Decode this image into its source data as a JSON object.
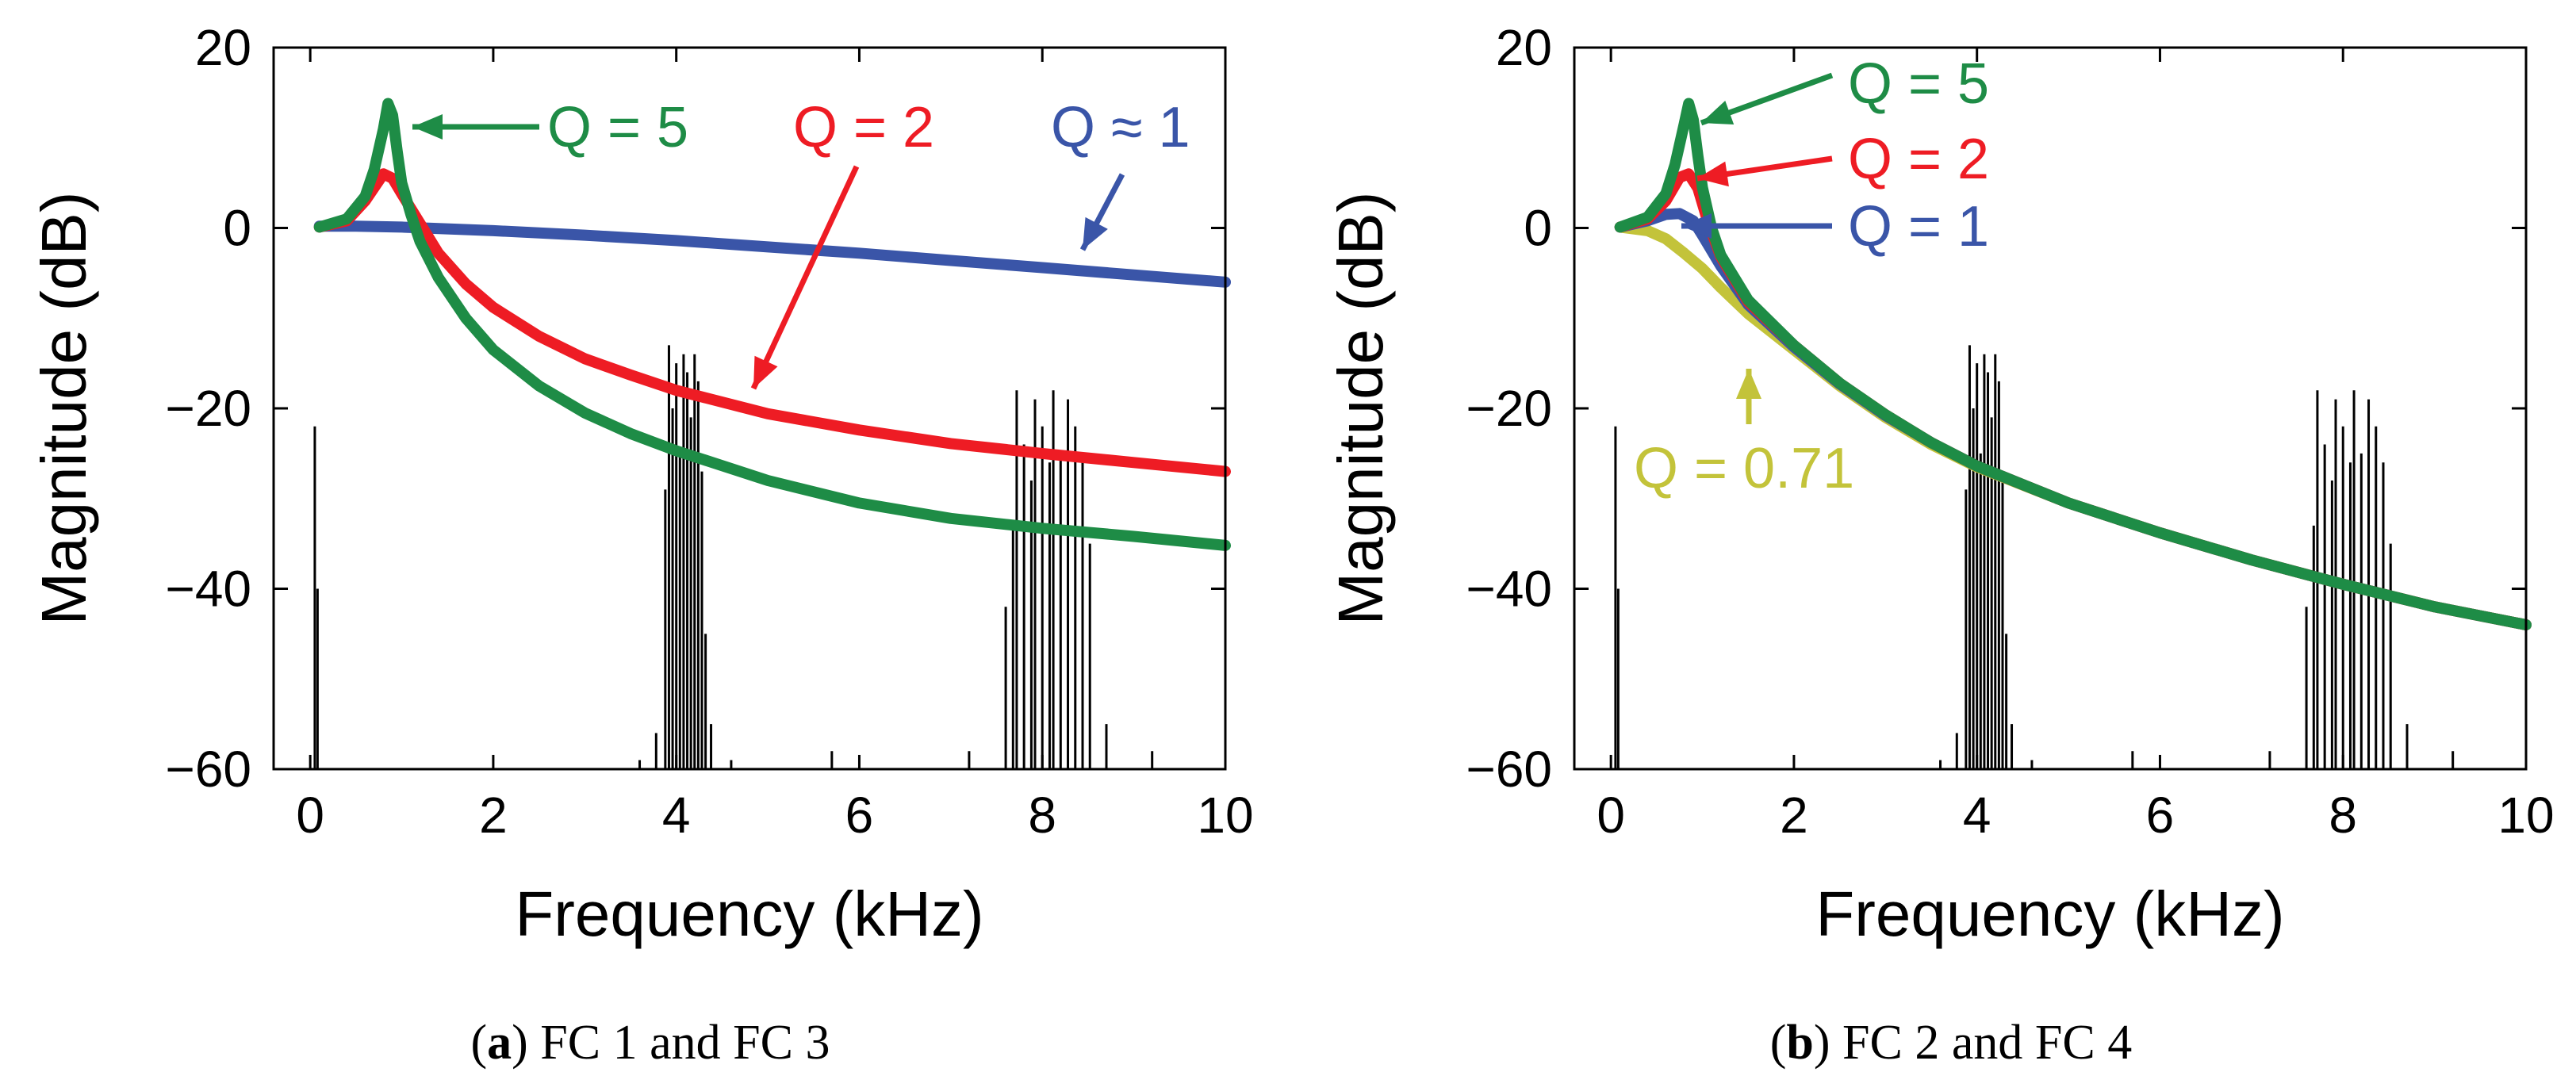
{
  "colors": {
    "green": "#1e8c46",
    "red": "#ee1c24",
    "blue": "#3a55a8",
    "yellow": "#c3c33a",
    "black": "#000000"
  },
  "chart_data": [
    {
      "type": "line",
      "caption_letter": "a",
      "caption_text": "FC 1 and FC 3",
      "xlabel": "Frequency (kHz)",
      "ylabel": "Magnitude (dB)",
      "xlim": [
        -0.4,
        10
      ],
      "ylim": [
        -60,
        20
      ],
      "xticks": [
        0,
        2,
        4,
        6,
        8,
        10
      ],
      "yticks": [
        20,
        0,
        -20,
        -40,
        -60
      ],
      "series": [
        {
          "name": "Q ≈ 1",
          "color": "blue",
          "label": "Q ≈ 1",
          "x": [
            0.1,
            0.5,
            1,
            2,
            3,
            4,
            5,
            6,
            7,
            8,
            9,
            10
          ],
          "y": [
            0.2,
            0.2,
            0.1,
            -0.3,
            -0.8,
            -1.4,
            -2.1,
            -2.8,
            -3.6,
            -4.4,
            -5.2,
            -6
          ]
        },
        {
          "name": "Q = 2",
          "color": "red",
          "label": "Q = 2",
          "x": [
            0.1,
            0.4,
            0.6,
            0.8,
            0.9,
            1.0,
            1.2,
            1.4,
            1.7,
            2,
            2.5,
            3,
            3.5,
            4,
            5,
            6,
            7,
            8,
            9,
            10
          ],
          "y": [
            0.1,
            0.8,
            3.0,
            6.0,
            5.5,
            3.8,
            0.5,
            -2.8,
            -6.2,
            -8.8,
            -12.0,
            -14.5,
            -16.3,
            -18.0,
            -20.6,
            -22.4,
            -23.9,
            -25.0,
            -26.0,
            -27.0
          ]
        },
        {
          "name": "Q = 5",
          "color": "green",
          "label": "Q = 5",
          "x": [
            0.1,
            0.4,
            0.6,
            0.7,
            0.8,
            0.85,
            0.9,
            0.95,
            1.0,
            1.1,
            1.2,
            1.4,
            1.7,
            2,
            2.5,
            3,
            3.5,
            4,
            5,
            6,
            7,
            8,
            9,
            10
          ],
          "y": [
            0.1,
            1.0,
            3.5,
            6.5,
            11.0,
            13.8,
            12.5,
            8.5,
            5.0,
            1.5,
            -1.5,
            -5.5,
            -10.0,
            -13.5,
            -17.5,
            -20.5,
            -22.8,
            -24.7,
            -28.0,
            -30.5,
            -32.2,
            -33.3,
            -34.2,
            -35.2
          ]
        }
      ],
      "annotations": [
        {
          "text": "Q = 5",
          "color": "green"
        },
        {
          "text": "Q = 2",
          "color": "red"
        },
        {
          "text": "Q ≈ 1",
          "color": "blue"
        }
      ],
      "spectrum": {
        "baseline": -60,
        "peaks": [
          {
            "x": 0.05,
            "y": -22
          },
          {
            "x": 0.08,
            "y": -40
          },
          {
            "x": 3.78,
            "y": -56
          },
          {
            "x": 3.88,
            "y": -29
          },
          {
            "x": 3.92,
            "y": -13
          },
          {
            "x": 3.96,
            "y": -20
          },
          {
            "x": 4.0,
            "y": -15
          },
          {
            "x": 4.04,
            "y": -25
          },
          {
            "x": 4.08,
            "y": -14
          },
          {
            "x": 4.12,
            "y": -16
          },
          {
            "x": 4.16,
            "y": -21
          },
          {
            "x": 4.2,
            "y": -14
          },
          {
            "x": 4.24,
            "y": -17
          },
          {
            "x": 4.28,
            "y": -27
          },
          {
            "x": 4.32,
            "y": -45
          },
          {
            "x": 4.38,
            "y": -55
          },
          {
            "x": 7.6,
            "y": -42
          },
          {
            "x": 7.68,
            "y": -33
          },
          {
            "x": 7.72,
            "y": -18
          },
          {
            "x": 7.8,
            "y": -24
          },
          {
            "x": 7.88,
            "y": -28
          },
          {
            "x": 7.92,
            "y": -19
          },
          {
            "x": 8.0,
            "y": -22
          },
          {
            "x": 8.08,
            "y": -26
          },
          {
            "x": 8.12,
            "y": -18
          },
          {
            "x": 8.2,
            "y": -25
          },
          {
            "x": 8.28,
            "y": -19
          },
          {
            "x": 8.36,
            "y": -22
          },
          {
            "x": 8.44,
            "y": -26
          },
          {
            "x": 8.52,
            "y": -35
          },
          {
            "x": 8.7,
            "y": -55
          },
          {
            "x": 3.6,
            "y": -59
          },
          {
            "x": 4.6,
            "y": -59
          },
          {
            "x": 5.7,
            "y": -58
          },
          {
            "x": 7.2,
            "y": -58
          },
          {
            "x": 9.2,
            "y": -58
          }
        ]
      }
    },
    {
      "type": "line",
      "caption_letter": "b",
      "caption_text": "FC 2 and FC 4",
      "xlabel": "Frequency (kHz)",
      "ylabel": "Magnitude (dB)",
      "xlim": [
        -0.4,
        10
      ],
      "ylim": [
        -60,
        20
      ],
      "xticks": [
        0,
        2,
        4,
        6,
        8,
        10
      ],
      "yticks": [
        20,
        0,
        -20,
        -40,
        -60
      ],
      "series": [
        {
          "name": "Q = 0.71",
          "color": "yellow",
          "label": "Q = 0.71",
          "x": [
            0.1,
            0.4,
            0.6,
            0.8,
            1.0,
            1.2,
            1.5,
            2,
            2.5,
            3,
            3.5,
            4,
            5,
            6,
            7,
            8,
            9,
            10
          ],
          "y": [
            0.1,
            -0.3,
            -1.2,
            -2.8,
            -4.5,
            -6.6,
            -9.5,
            -13.5,
            -17.5,
            -21.0,
            -24.0,
            -26.5,
            -30.5,
            -33.8,
            -36.8,
            -39.5,
            -42.0,
            -44.0
          ]
        },
        {
          "name": "Q = 1",
          "color": "blue",
          "label": "Q = 1",
          "x": [
            0.1,
            0.4,
            0.6,
            0.75,
            0.9,
            1.0,
            1.2,
            1.5,
            2,
            2.5,
            3,
            3.5,
            4,
            5,
            6,
            7,
            8,
            9,
            10
          ],
          "y": [
            0.1,
            0.8,
            1.5,
            1.6,
            0.8,
            -0.8,
            -4.2,
            -8.5,
            -13.2,
            -17.3,
            -20.8,
            -23.8,
            -26.4,
            -30.5,
            -33.8,
            -36.8,
            -39.5,
            -42.0,
            -44.0
          ]
        },
        {
          "name": "Q = 2",
          "color": "red",
          "label": "Q = 2",
          "x": [
            0.1,
            0.4,
            0.6,
            0.75,
            0.85,
            0.95,
            1.05,
            1.2,
            1.5,
            2,
            2.5,
            3,
            3.5,
            4,
            5,
            6,
            7,
            8,
            9,
            10
          ],
          "y": [
            0.1,
            1.0,
            3.0,
            5.6,
            6.0,
            4.4,
            1.0,
            -3.2,
            -8.2,
            -13.0,
            -17.2,
            -20.7,
            -23.8,
            -26.4,
            -30.5,
            -33.8,
            -36.8,
            -39.5,
            -42.0,
            -44.0
          ]
        },
        {
          "name": "Q = 5",
          "color": "green",
          "label": "Q = 5",
          "x": [
            0.1,
            0.4,
            0.6,
            0.7,
            0.8,
            0.85,
            0.9,
            0.95,
            1.0,
            1.1,
            1.2,
            1.5,
            2,
            2.5,
            3,
            3.5,
            4,
            5,
            6,
            7,
            8,
            9,
            10
          ],
          "y": [
            0.1,
            1.2,
            3.8,
            7.0,
            11.5,
            13.8,
            12.0,
            8.0,
            4.5,
            0.0,
            -3.0,
            -8.0,
            -13.0,
            -17.2,
            -20.7,
            -23.8,
            -26.4,
            -30.5,
            -33.8,
            -36.8,
            -39.5,
            -42.0,
            -44.0
          ]
        }
      ],
      "annotations": [
        {
          "text": "Q = 5",
          "color": "green"
        },
        {
          "text": "Q = 2",
          "color": "red"
        },
        {
          "text": "Q = 1",
          "color": "blue"
        },
        {
          "text": "Q = 0.71",
          "color": "yellow"
        }
      ],
      "spectrum": {
        "baseline": -60,
        "peaks": [
          {
            "x": 0.05,
            "y": -22
          },
          {
            "x": 0.08,
            "y": -40
          },
          {
            "x": 3.78,
            "y": -56
          },
          {
            "x": 3.88,
            "y": -29
          },
          {
            "x": 3.92,
            "y": -13
          },
          {
            "x": 3.96,
            "y": -20
          },
          {
            "x": 4.0,
            "y": -15
          },
          {
            "x": 4.04,
            "y": -25
          },
          {
            "x": 4.08,
            "y": -14
          },
          {
            "x": 4.12,
            "y": -16
          },
          {
            "x": 4.16,
            "y": -21
          },
          {
            "x": 4.2,
            "y": -14
          },
          {
            "x": 4.24,
            "y": -17
          },
          {
            "x": 4.28,
            "y": -27
          },
          {
            "x": 4.32,
            "y": -45
          },
          {
            "x": 4.38,
            "y": -55
          },
          {
            "x": 7.6,
            "y": -42
          },
          {
            "x": 7.68,
            "y": -33
          },
          {
            "x": 7.72,
            "y": -18
          },
          {
            "x": 7.8,
            "y": -24
          },
          {
            "x": 7.88,
            "y": -28
          },
          {
            "x": 7.92,
            "y": -19
          },
          {
            "x": 8.0,
            "y": -22
          },
          {
            "x": 8.08,
            "y": -26
          },
          {
            "x": 8.12,
            "y": -18
          },
          {
            "x": 8.2,
            "y": -25
          },
          {
            "x": 8.28,
            "y": -19
          },
          {
            "x": 8.36,
            "y": -22
          },
          {
            "x": 8.44,
            "y": -26
          },
          {
            "x": 8.52,
            "y": -35
          },
          {
            "x": 8.7,
            "y": -55
          },
          {
            "x": 3.6,
            "y": -59
          },
          {
            "x": 4.6,
            "y": -59
          },
          {
            "x": 5.7,
            "y": -58
          },
          {
            "x": 7.2,
            "y": -58
          },
          {
            "x": 9.2,
            "y": -58
          }
        ]
      }
    }
  ]
}
